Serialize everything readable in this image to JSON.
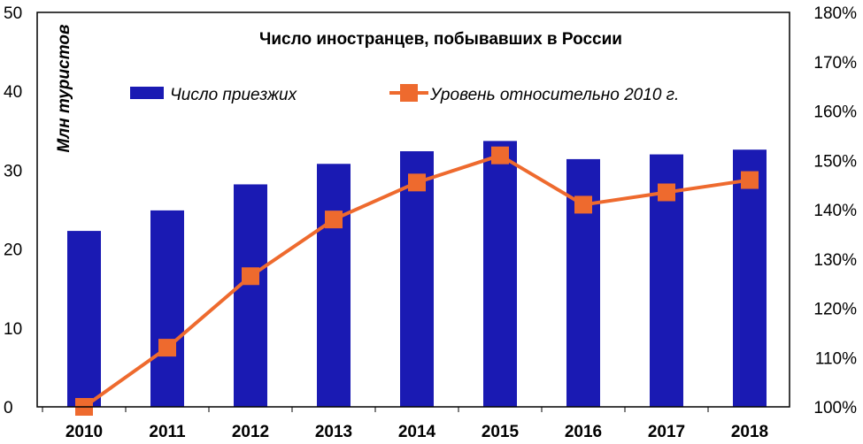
{
  "chart_data": {
    "type": "bar",
    "title": "Число иностранцев, побывавших в России",
    "categories": [
      "2010",
      "2011",
      "2012",
      "2013",
      "2014",
      "2015",
      "2016",
      "2017",
      "2018"
    ],
    "series": [
      {
        "name": "Число приезжих",
        "type": "bar",
        "axis": "left",
        "color": "#1a1ab3",
        "values": [
          22.3,
          24.9,
          28.2,
          30.8,
          32.4,
          33.7,
          31.4,
          32.0,
          32.6
        ]
      },
      {
        "name": "Уровень относительно 2010 г.",
        "type": "line",
        "axis": "right",
        "color": "#ee6a2e",
        "marker": "square",
        "values": [
          1.0,
          1.12,
          1.265,
          1.38,
          1.455,
          1.51,
          1.41,
          1.435,
          1.46
        ]
      }
    ],
    "ylabel": "Млн туристов",
    "xlabel": "",
    "ylim": [
      0,
      50
    ],
    "yticks": [
      0,
      10,
      20,
      30,
      40,
      50
    ],
    "y2lim": [
      1.0,
      1.8
    ],
    "y2ticks": [
      "100%",
      "110%",
      "120%",
      "130%",
      "140%",
      "150%",
      "160%",
      "170%",
      "180%"
    ],
    "grid": false,
    "legend_position": "top"
  }
}
